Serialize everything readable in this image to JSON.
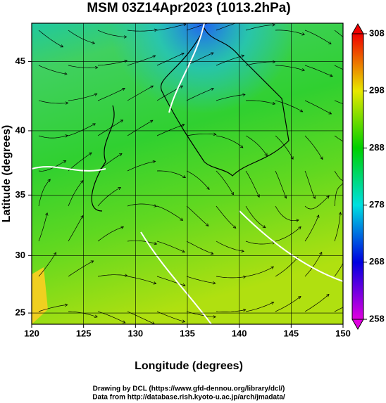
{
  "chart_data": {
    "type": "map",
    "projection": "mercator",
    "title": "MSM 03Z14Apr2023 (1013.2hPa)",
    "x_label": "Longitude (degrees)",
    "y_label": "Latitude  (degrees)",
    "xlim": [
      120,
      150
    ],
    "ylim": [
      24,
      47.6
    ],
    "xticks": [
      120,
      125,
      130,
      135,
      140,
      145,
      150
    ],
    "yticks": [
      25,
      30,
      35,
      40,
      45
    ],
    "grid": true,
    "colorbar": {
      "clim": [
        258,
        308
      ],
      "ticks": [
        258,
        268,
        278,
        288,
        298,
        308
      ]
    },
    "credits": [
      "Drawing by DCL (https://www.gfd-dennou.org/library/dcl/)",
      "Data from http://database.rish.kyoto-u.ac.jp/arch/jmadata/"
    ]
  }
}
